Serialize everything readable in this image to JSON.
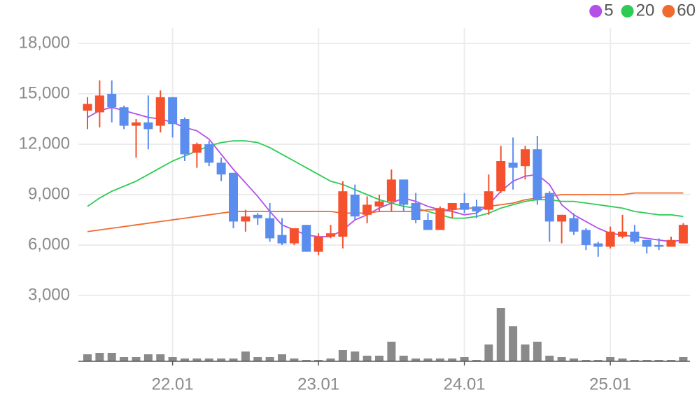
{
  "chart_data": {
    "type": "candlestick",
    "categories": [
      null,
      null,
      null,
      null,
      null,
      null,
      null,
      "22.01",
      null,
      null,
      null,
      null,
      null,
      null,
      null,
      null,
      null,
      null,
      null,
      "23.01",
      null,
      null,
      null,
      null,
      null,
      null,
      null,
      null,
      null,
      null,
      null,
      "24.01",
      null,
      null,
      null,
      null,
      null,
      null,
      null,
      null,
      null,
      null,
      null,
      "25.01",
      null,
      null,
      null,
      null,
      null,
      null
    ],
    "open": [
      14000,
      13900,
      15000,
      14200,
      13100,
      13300,
      13100,
      14800,
      13500,
      11500,
      12000,
      10900,
      10300,
      7400,
      7800,
      7600,
      6600,
      6100,
      7200,
      5600,
      6500,
      6500,
      9000,
      7800,
      8300,
      8600,
      9900,
      8500,
      7500,
      6900,
      8100,
      8500,
      8300,
      8100,
      9200,
      10900,
      10700,
      11700,
      9100,
      7400,
      7600,
      6900,
      6100,
      5900,
      6500,
      6800,
      6300,
      6000,
      5900,
      6100
    ],
    "high": [
      14800,
      15800,
      15800,
      14300,
      13500,
      14900,
      15200,
      14800,
      13600,
      12100,
      12200,
      11200,
      10300,
      8100,
      7900,
      8500,
      7600,
      7000,
      7200,
      6700,
      7200,
      9800,
      9600,
      8900,
      9000,
      10500,
      9900,
      9100,
      7900,
      8300,
      8500,
      9100,
      8700,
      10200,
      11900,
      12400,
      11900,
      12500,
      9200,
      7800,
      7900,
      7000,
      6200,
      7100,
      7800,
      7200,
      6300,
      6400,
      6500,
      7300
    ],
    "low": [
      12900,
      13000,
      13300,
      12900,
      11200,
      11700,
      12700,
      12400,
      11000,
      10600,
      10700,
      9800,
      7000,
      6800,
      7200,
      6200,
      6000,
      6000,
      5600,
      5400,
      6400,
      5800,
      7500,
      7300,
      8000,
      8000,
      8000,
      7300,
      6900,
      6900,
      7600,
      7900,
      7600,
      7800,
      9100,
      9300,
      9900,
      8400,
      6200,
      6100,
      6600,
      5700,
      5300,
      5800,
      6400,
      6100,
      5500,
      5700,
      5900,
      6100
    ],
    "close": [
      14400,
      14900,
      14200,
      13100,
      13300,
      12900,
      14800,
      13200,
      11400,
      12000,
      10900,
      10200,
      7400,
      7700,
      7600,
      6400,
      6100,
      7000,
      5600,
      6500,
      6700,
      9200,
      7700,
      8400,
      8600,
      9900,
      8400,
      7500,
      6900,
      8200,
      8500,
      8100,
      8000,
      9200,
      11000,
      10600,
      11700,
      8700,
      7400,
      7800,
      6800,
      6000,
      5900,
      6800,
      6800,
      6200,
      5900,
      5900,
      6300,
      7200
    ],
    "up_color": "#f4512c",
    "down_color": "#5b8def",
    "series": [
      {
        "name": "5",
        "color": "#b44fe8",
        "values": [
          13600,
          14000,
          14200,
          14000,
          13800,
          13600,
          13500,
          13300,
          13000,
          12800,
          12300,
          11400,
          10500,
          9700,
          8900,
          8000,
          7200,
          6900,
          6600,
          6500,
          6500,
          6900,
          7500,
          7800,
          8200,
          8500,
          8800,
          8600,
          8300,
          8100,
          8000,
          7800,
          7900,
          8400,
          9200,
          9800,
          10100,
          10200,
          9600,
          8400,
          7800,
          7400,
          7000,
          6700,
          6600,
          6500,
          6400,
          6300,
          6200,
          6300
        ]
      },
      {
        "name": "20",
        "color": "#2ecc55",
        "values": [
          8300,
          8800,
          9200,
          9500,
          9800,
          10200,
          10600,
          11000,
          11300,
          11600,
          11900,
          12100,
          12200,
          12200,
          12100,
          11800,
          11400,
          11000,
          10600,
          10200,
          9800,
          9600,
          9300,
          9000,
          8700,
          8500,
          8300,
          8200,
          8000,
          7800,
          7600,
          7600,
          7700,
          7900,
          8200,
          8400,
          8600,
          8700,
          8700,
          8600,
          8600,
          8500,
          8400,
          8300,
          8200,
          8000,
          7900,
          7800,
          7800,
          7700
        ]
      },
      {
        "name": "60",
        "color": "#f26a2e",
        "values": [
          6800,
          6900,
          7000,
          7100,
          7200,
          7300,
          7400,
          7500,
          7600,
          7700,
          7800,
          7900,
          8000,
          8000,
          8000,
          8000,
          8000,
          8000,
          8000,
          8000,
          8000,
          7900,
          7900,
          7900,
          8000,
          8000,
          8000,
          8000,
          8100,
          8100,
          8100,
          8200,
          8200,
          8300,
          8400,
          8500,
          8700,
          8800,
          8900,
          9000,
          9000,
          9000,
          9000,
          9000,
          9000,
          9100,
          9100,
          9100,
          9100,
          9100
        ]
      }
    ],
    "volume": {
      "color": "#8a8a8a",
      "values": [
        10,
        12,
        12,
        6,
        6,
        10,
        10,
        6,
        4,
        4,
        4,
        4,
        4,
        14,
        6,
        6,
        10,
        4,
        2,
        2,
        4,
        16,
        14,
        8,
        8,
        28,
        8,
        4,
        4,
        4,
        4,
        6,
        2,
        24,
        76,
        50,
        24,
        28,
        8,
        6,
        4,
        2,
        2,
        6,
        4,
        2,
        2,
        2,
        2,
        6
      ]
    },
    "ylim": [
      3000,
      18000
    ],
    "yticks": [
      {
        "value": 3000,
        "label": "3,000"
      },
      {
        "value": 6000,
        "label": "6,000"
      },
      {
        "value": 9000,
        "label": "9,000"
      },
      {
        "value": 12000,
        "label": "12,000"
      },
      {
        "value": 15000,
        "label": "15,000"
      },
      {
        "value": 18000,
        "label": "18,000"
      }
    ],
    "grid": true,
    "legend": "top-right"
  }
}
